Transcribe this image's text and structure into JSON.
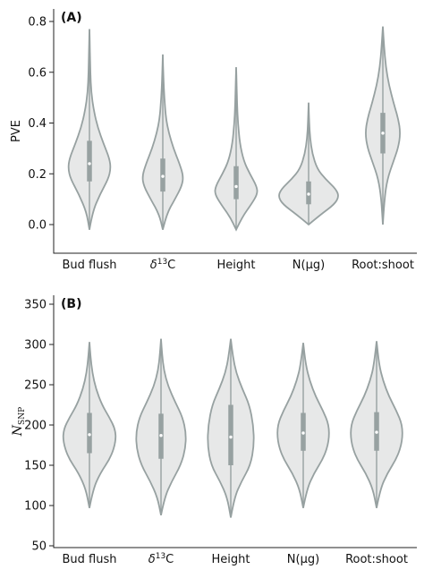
{
  "chart_data": [
    {
      "type": "violin",
      "tag": "(A)",
      "ylabel": "PVE",
      "ylim": [
        -0.1,
        0.8
      ],
      "yticks": [
        "0.0",
        "0.2",
        "0.4",
        "0.6",
        "0.8"
      ],
      "categories": [
        {
          "label": "Bud flush",
          "prefix": "",
          "sup": "",
          "suffix": ""
        },
        {
          "label": "",
          "prefix": "δ",
          "sup": "13",
          "suffix": "C"
        },
        {
          "label": "Height",
          "prefix": "",
          "sup": "",
          "suffix": ""
        },
        {
          "label": "N(μg)",
          "prefix": "",
          "sup": "",
          "suffix": ""
        },
        {
          "label": "Root:shoot",
          "prefix": "",
          "sup": "",
          "suffix": ""
        }
      ],
      "series": [
        {
          "min": -0.02,
          "max": 0.77,
          "q1": 0.17,
          "median": 0.24,
          "q3": 0.33,
          "profile": [
            [
              -0.02,
              0
            ],
            [
              0.05,
              0.1
            ],
            [
              0.12,
              0.35
            ],
            [
              0.18,
              0.62
            ],
            [
              0.22,
              0.7
            ],
            [
              0.26,
              0.66
            ],
            [
              0.32,
              0.46
            ],
            [
              0.38,
              0.28
            ],
            [
              0.45,
              0.14
            ],
            [
              0.52,
              0.06
            ],
            [
              0.6,
              0.03
            ],
            [
              0.68,
              0.015
            ],
            [
              0.77,
              0
            ]
          ]
        },
        {
          "min": -0.02,
          "max": 0.67,
          "q1": 0.13,
          "median": 0.19,
          "q3": 0.26,
          "profile": [
            [
              -0.02,
              0
            ],
            [
              0.04,
              0.12
            ],
            [
              0.1,
              0.4
            ],
            [
              0.15,
              0.62
            ],
            [
              0.19,
              0.68
            ],
            [
              0.24,
              0.55
            ],
            [
              0.3,
              0.35
            ],
            [
              0.36,
              0.2
            ],
            [
              0.42,
              0.1
            ],
            [
              0.5,
              0.05
            ],
            [
              0.58,
              0.02
            ],
            [
              0.67,
              0
            ]
          ]
        },
        {
          "min": -0.02,
          "max": 0.62,
          "q1": 0.1,
          "median": 0.15,
          "q3": 0.23,
          "profile": [
            [
              -0.02,
              0
            ],
            [
              0.03,
              0.2
            ],
            [
              0.08,
              0.5
            ],
            [
              0.12,
              0.7
            ],
            [
              0.15,
              0.68
            ],
            [
              0.2,
              0.45
            ],
            [
              0.25,
              0.25
            ],
            [
              0.32,
              0.12
            ],
            [
              0.4,
              0.06
            ],
            [
              0.48,
              0.03
            ],
            [
              0.55,
              0.015
            ],
            [
              0.62,
              0
            ]
          ]
        },
        {
          "min": 0.0,
          "max": 0.48,
          "q1": 0.08,
          "median": 0.12,
          "q3": 0.17,
          "profile": [
            [
              0.0,
              0
            ],
            [
              0.04,
              0.4
            ],
            [
              0.08,
              0.85
            ],
            [
              0.11,
              1.0
            ],
            [
              0.14,
              0.9
            ],
            [
              0.18,
              0.55
            ],
            [
              0.22,
              0.28
            ],
            [
              0.28,
              0.12
            ],
            [
              0.34,
              0.05
            ],
            [
              0.4,
              0.02
            ],
            [
              0.48,
              0
            ]
          ]
        },
        {
          "min": 0.0,
          "max": 0.78,
          "q1": 0.28,
          "median": 0.36,
          "q3": 0.44,
          "profile": [
            [
              0.0,
              0
            ],
            [
              0.1,
              0.05
            ],
            [
              0.18,
              0.15
            ],
            [
              0.25,
              0.35
            ],
            [
              0.3,
              0.5
            ],
            [
              0.36,
              0.58
            ],
            [
              0.42,
              0.5
            ],
            [
              0.48,
              0.35
            ],
            [
              0.55,
              0.2
            ],
            [
              0.62,
              0.1
            ],
            [
              0.7,
              0.04
            ],
            [
              0.78,
              0
            ]
          ]
        }
      ]
    },
    {
      "type": "violin",
      "tag": "(B)",
      "ylabel_main": "N",
      "ylabel_sub": "SNP",
      "ylim": [
        50,
        350
      ],
      "yticks": [
        "50",
        "100",
        "150",
        "200",
        "250",
        "300",
        "350"
      ],
      "categories": [
        {
          "label": "Bud flush",
          "prefix": "",
          "sup": "",
          "suffix": ""
        },
        {
          "label": "",
          "prefix": "δ",
          "sup": "13",
          "suffix": "C"
        },
        {
          "label": "Height",
          "prefix": "",
          "sup": "",
          "suffix": ""
        },
        {
          "label": "N(μg)",
          "prefix": "",
          "sup": "",
          "suffix": ""
        },
        {
          "label": "Root:shoot",
          "prefix": "",
          "sup": "",
          "suffix": ""
        }
      ],
      "series": [
        {
          "min": 97,
          "max": 303,
          "q1": 165,
          "median": 188,
          "q3": 215,
          "profile": [
            [
              97,
              0
            ],
            [
              120,
              0.1
            ],
            [
              140,
              0.3
            ],
            [
              160,
              0.6
            ],
            [
              180,
              0.74
            ],
            [
              195,
              0.72
            ],
            [
              210,
              0.55
            ],
            [
              225,
              0.35
            ],
            [
              245,
              0.18
            ],
            [
              265,
              0.08
            ],
            [
              285,
              0.03
            ],
            [
              303,
              0
            ]
          ]
        },
        {
          "min": 88,
          "max": 307,
          "q1": 158,
          "median": 187,
          "q3": 214,
          "profile": [
            [
              88,
              0
            ],
            [
              110,
              0.1
            ],
            [
              130,
              0.3
            ],
            [
              150,
              0.55
            ],
            [
              170,
              0.68
            ],
            [
              190,
              0.7
            ],
            [
              210,
              0.6
            ],
            [
              228,
              0.4
            ],
            [
              248,
              0.2
            ],
            [
              268,
              0.08
            ],
            [
              288,
              0.03
            ],
            [
              307,
              0
            ]
          ]
        },
        {
          "min": 85,
          "max": 307,
          "q1": 150,
          "median": 185,
          "q3": 225,
          "profile": [
            [
              85,
              0
            ],
            [
              110,
              0.1
            ],
            [
              130,
              0.3
            ],
            [
              150,
              0.55
            ],
            [
              175,
              0.65
            ],
            [
              200,
              0.63
            ],
            [
              225,
              0.52
            ],
            [
              245,
              0.32
            ],
            [
              265,
              0.15
            ],
            [
              285,
              0.06
            ],
            [
              307,
              0
            ]
          ]
        },
        {
          "min": 97,
          "max": 302,
          "q1": 168,
          "median": 190,
          "q3": 215,
          "profile": [
            [
              97,
              0
            ],
            [
              120,
              0.1
            ],
            [
              140,
              0.3
            ],
            [
              160,
              0.58
            ],
            [
              180,
              0.72
            ],
            [
              200,
              0.72
            ],
            [
              218,
              0.55
            ],
            [
              235,
              0.35
            ],
            [
              255,
              0.18
            ],
            [
              275,
              0.07
            ],
            [
              302,
              0
            ]
          ]
        },
        {
          "min": 97,
          "max": 304,
          "q1": 168,
          "median": 191,
          "q3": 216,
          "profile": [
            [
              97,
              0
            ],
            [
              120,
              0.1
            ],
            [
              140,
              0.3
            ],
            [
              160,
              0.58
            ],
            [
              180,
              0.72
            ],
            [
              200,
              0.72
            ],
            [
              218,
              0.55
            ],
            [
              235,
              0.35
            ],
            [
              255,
              0.18
            ],
            [
              275,
              0.07
            ],
            [
              304,
              0
            ]
          ]
        }
      ]
    }
  ]
}
